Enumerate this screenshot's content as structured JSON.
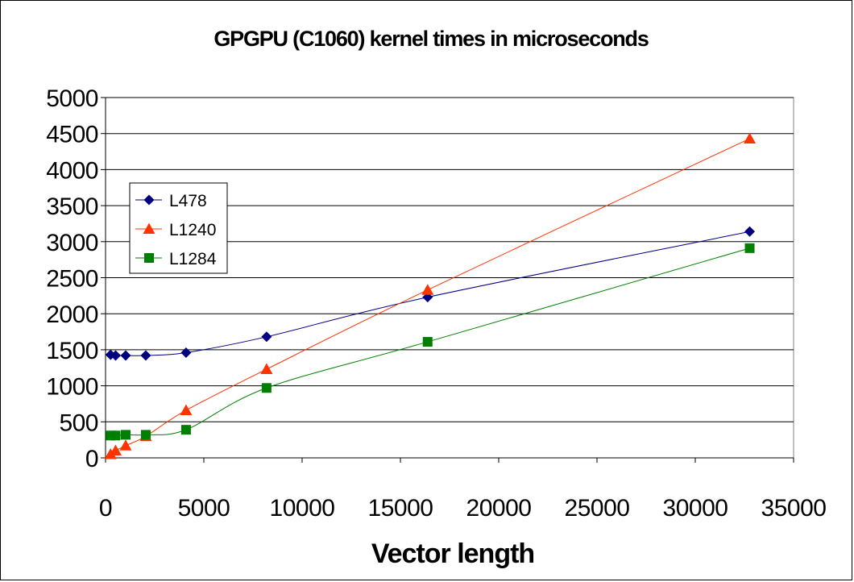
{
  "chart_data": {
    "type": "line",
    "title": "GPGPU (C1060) kernel times in microseconds",
    "xlabel": "Vector length",
    "ylabel": "",
    "xlim": [
      0,
      35000
    ],
    "ylim": [
      0,
      5000
    ],
    "x_ticks": [
      0,
      5000,
      10000,
      15000,
      20000,
      25000,
      30000,
      35000
    ],
    "y_ticks": [
      0,
      500,
      1000,
      1500,
      2000,
      2500,
      3000,
      3500,
      4000,
      4500,
      5000
    ],
    "grid": "horizontal",
    "legend_position": "left",
    "x": [
      256,
      512,
      1024,
      2048,
      4096,
      8192,
      16384,
      32768
    ],
    "series": [
      {
        "name": "L478",
        "color": "#000080",
        "marker": "diamond",
        "values": [
          1430,
          1420,
          1420,
          1420,
          1460,
          1680,
          2230,
          3140
        ]
      },
      {
        "name": "L1240",
        "color": "#ff3300",
        "marker": "triangle",
        "values": [
          50,
          100,
          170,
          300,
          660,
          1230,
          2330,
          4430
        ]
      },
      {
        "name": "L1284",
        "color": "#008000",
        "marker": "square",
        "values": [
          310,
          310,
          320,
          320,
          390,
          970,
          1610,
          2910
        ]
      }
    ]
  }
}
